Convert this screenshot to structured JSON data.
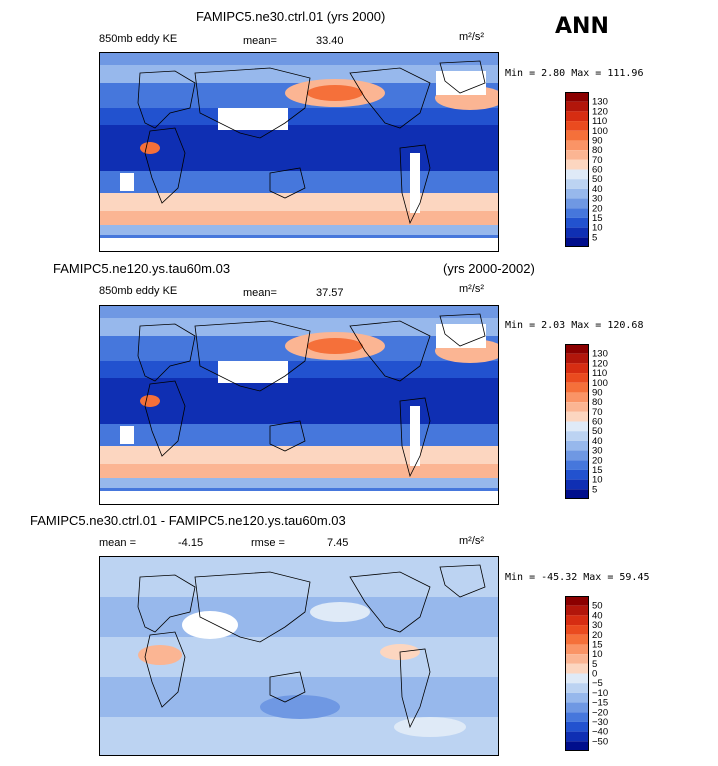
{
  "season": "ANN",
  "panels": [
    {
      "title": "FAMIPC5.ne30.ctrl.01 (yrs 2000)",
      "title_right": "",
      "left_label": "850mb eddy KE",
      "stat_a_label": "mean=",
      "stat_a_value": "33.40",
      "stat_b_label": "",
      "stat_b_value": "",
      "units": "m²/s²",
      "minmax": "Min =   2.80 Max = 111.96",
      "kind": "abs"
    },
    {
      "title": "FAMIPC5.ne120.ys.tau60m.03",
      "title_right": "(yrs 2000-2002)",
      "left_label": "850mb eddy KE",
      "stat_a_label": "mean=",
      "stat_a_value": "37.57",
      "stat_b_label": "",
      "stat_b_value": "",
      "units": "m²/s²",
      "minmax": "Min =   2.03 Max = 120.68",
      "kind": "abs"
    },
    {
      "title": "FAMIPC5.ne30.ctrl.01 - FAMIPC5.ne120.ys.tau60m.03",
      "title_right": "",
      "left_label": "",
      "stat_a_label": "mean =",
      "stat_a_value": "-4.15",
      "stat_b_label": "rmse =",
      "stat_b_value": "7.45",
      "units": "m²/s²",
      "minmax": "Min = -45.32 Max =  59.45",
      "kind": "diff"
    }
  ],
  "chart_data": [
    {
      "type": "heatmap",
      "title": "FAMIPC5.ne30.ctrl.01 (yrs 2000)",
      "variable": "850mb eddy KE",
      "units": "m²/s²",
      "mean": 33.4,
      "min": 2.8,
      "max": 111.96,
      "colorbar_levels": [
        130,
        120,
        110,
        100,
        90,
        80,
        70,
        60,
        50,
        40,
        30,
        20,
        15,
        10,
        5
      ],
      "colorbar_colors": [
        "#8b0000",
        "#b2160b",
        "#d62d12",
        "#ea4b1f",
        "#f5703a",
        "#fa9466",
        "#fbb593",
        "#fcd6c0",
        "#dfeaf7",
        "#bcd3f2",
        "#97b8ec",
        "#6f98e3",
        "#4677dc",
        "#2252cf",
        "#0f2fb3",
        "#000e8c"
      ]
    },
    {
      "type": "heatmap",
      "title": "FAMIPC5.ne120.ys.tau60m.03 (yrs 2000-2002)",
      "variable": "850mb eddy KE",
      "units": "m²/s²",
      "mean": 37.57,
      "min": 2.03,
      "max": 120.68,
      "colorbar_levels": [
        130,
        120,
        110,
        100,
        90,
        80,
        70,
        60,
        50,
        40,
        30,
        20,
        15,
        10,
        5
      ],
      "colorbar_colors": [
        "#8b0000",
        "#b2160b",
        "#d62d12",
        "#ea4b1f",
        "#f5703a",
        "#fa9466",
        "#fbb593",
        "#fcd6c0",
        "#dfeaf7",
        "#bcd3f2",
        "#97b8ec",
        "#6f98e3",
        "#4677dc",
        "#2252cf",
        "#0f2fb3",
        "#000e8c"
      ]
    },
    {
      "type": "heatmap",
      "title": "FAMIPC5.ne30.ctrl.01 - FAMIPC5.ne120.ys.tau60m.03",
      "units": "m²/s²",
      "mean": -4.15,
      "rmse": 7.45,
      "min": -45.32,
      "max": 59.45,
      "colorbar_levels": [
        50,
        40,
        30,
        20,
        15,
        10,
        5,
        0,
        -5,
        -10,
        -15,
        -20,
        -30,
        -40,
        -50
      ],
      "colorbar_colors": [
        "#8b0000",
        "#b2160b",
        "#d62d12",
        "#ea4b1f",
        "#f5703a",
        "#fa9466",
        "#fbb593",
        "#fcd6c0",
        "#dfeaf7",
        "#bcd3f2",
        "#97b8ec",
        "#6f98e3",
        "#4677dc",
        "#2252cf",
        "#0f2fb3",
        "#000e8c"
      ]
    }
  ]
}
